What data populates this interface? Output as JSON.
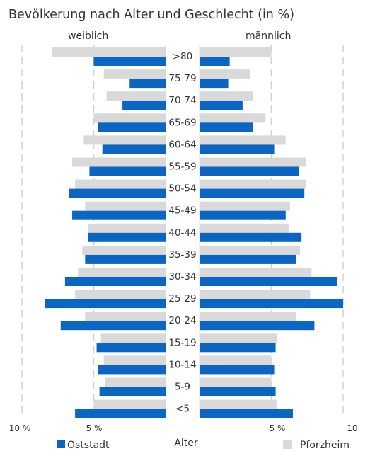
{
  "chart_data": {
    "type": "bar",
    "orientation": "horizontal",
    "layout": "population-pyramid",
    "title": "Bevölkerung nach Alter und Geschlecht (in %)",
    "left_label": "weiblich",
    "right_label": "männlich",
    "center_label": "Alter",
    "categories": [
      ">80",
      "75-79",
      "70-74",
      "65-69",
      "60-64",
      "55-59",
      "50-54",
      "45-49",
      "40-44",
      "35-39",
      "30-34",
      "25-29",
      "20-24",
      "15-19",
      "10-14",
      "5-9",
      "<5"
    ],
    "series": [
      {
        "name": "Oststadt",
        "color": "#0b66c3",
        "female": [
          5.0,
          2.5,
          3.0,
          4.7,
          4.4,
          5.3,
          6.7,
          6.5,
          5.4,
          5.6,
          7.0,
          8.4,
          7.3,
          4.8,
          4.7,
          4.6,
          6.3
        ],
        "male": [
          2.1,
          2.0,
          3.0,
          3.7,
          5.2,
          6.9,
          7.3,
          6.0,
          7.1,
          6.7,
          9.6,
          10.0,
          8.0,
          5.3,
          5.2,
          5.3,
          6.5
        ]
      },
      {
        "name": "Pforzheim",
        "color": "#d9d9d9",
        "female": [
          7.9,
          4.3,
          4.1,
          5.0,
          5.7,
          6.5,
          6.3,
          5.6,
          5.4,
          5.8,
          6.1,
          6.3,
          5.6,
          4.5,
          4.3,
          4.2,
          5.0
        ],
        "male": [
          5.0,
          3.5,
          3.7,
          4.6,
          6.0,
          7.4,
          7.4,
          6.3,
          6.2,
          7.0,
          7.8,
          7.7,
          6.7,
          5.4,
          5.0,
          5.0,
          5.4
        ]
      }
    ],
    "x_ticks_left": [
      "10 %",
      "5 %"
    ],
    "x_ticks_right": [
      "5 %",
      "10"
    ],
    "xlim": [
      0,
      10
    ],
    "grid": true,
    "legend": "bottom"
  }
}
